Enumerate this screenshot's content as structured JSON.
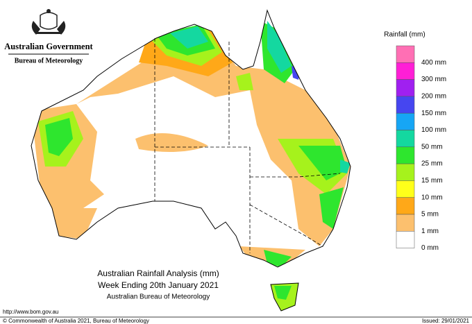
{
  "header": {
    "government": "Australian Government",
    "bureau": "Bureau of Meteorology"
  },
  "legend": {
    "title": "Rainfall (mm)",
    "top_color": "#ff6fb4",
    "items": [
      {
        "label": "400 mm",
        "color": "#ff1fd6"
      },
      {
        "label": "300 mm",
        "color": "#a020f0"
      },
      {
        "label": "200 mm",
        "color": "#4646f0"
      },
      {
        "label": "150 mm",
        "color": "#16a6f5"
      },
      {
        "label": "100 mm",
        "color": "#14d8a0"
      },
      {
        "label": "50 mm",
        "color": "#2ee62e"
      },
      {
        "label": "25 mm",
        "color": "#a6f21c"
      },
      {
        "label": "15 mm",
        "color": "#ffff1a"
      },
      {
        "label": "10 mm",
        "color": "#ffa818"
      },
      {
        "label": "5 mm",
        "color": "#fcc06e"
      },
      {
        "label": "1 mm",
        "color": "#ffffff"
      },
      {
        "label": "0 mm",
        "color": "#ffffff"
      }
    ]
  },
  "map_title": {
    "line1": "Australian Rainfall Analysis (mm)",
    "line2": "Week Ending 20th January 2021",
    "line3": "Australian Bureau of Meteorology"
  },
  "footer": {
    "url": "http://www.bom.gov.au",
    "copyright": "© Commonwealth of Australia 2021, Bureau of Meteorology",
    "issued": "Issued: 29/01/2021"
  }
}
